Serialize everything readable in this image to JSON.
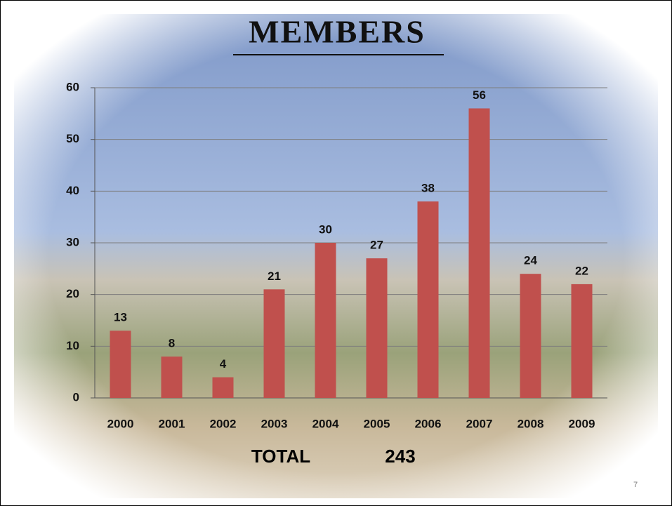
{
  "chart_data": {
    "type": "bar",
    "title": "MEMBERS",
    "categories": [
      "2000",
      "2001",
      "2002",
      "2003",
      "2004",
      "2005",
      "2006",
      "2007",
      "2008",
      "2009"
    ],
    "values": [
      13,
      8,
      4,
      21,
      30,
      27,
      38,
      56,
      24,
      22
    ],
    "color": "#c0504d",
    "ylim": [
      0,
      60
    ],
    "yticks": [
      0,
      10,
      20,
      30,
      40,
      50,
      60
    ],
    "grid": true
  },
  "total_label": "TOTAL",
  "total_value": 243,
  "page_number": 7
}
